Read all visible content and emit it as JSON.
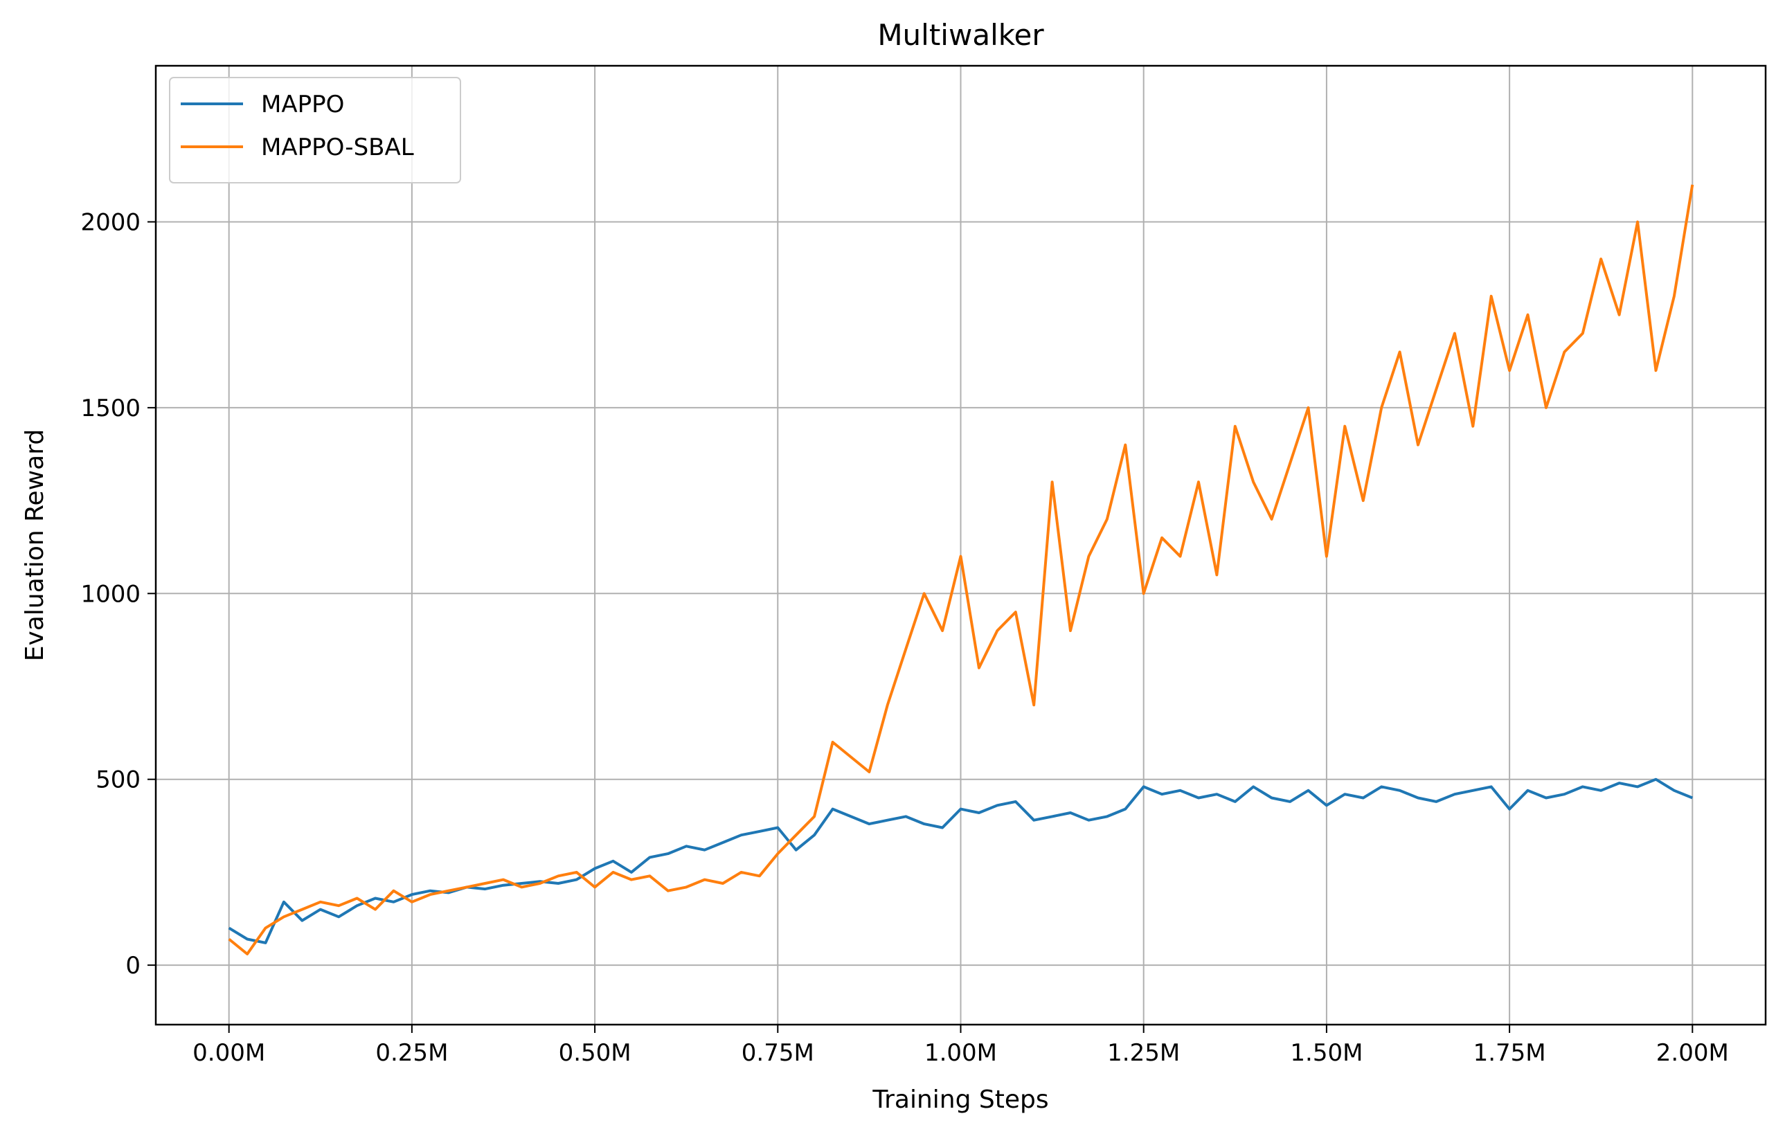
{
  "chart_data": {
    "type": "line",
    "title": "Multiwalker",
    "xlabel": "Training Steps",
    "ylabel": "Evaluation Reward",
    "xlim": [
      -0.1,
      2.1
    ],
    "ylim": [
      -160,
      2420
    ],
    "xticks": [
      0,
      0.25,
      0.5,
      0.75,
      1.0,
      1.25,
      1.5,
      1.75,
      2.0
    ],
    "xtick_labels": [
      "0.00M",
      "0.25M",
      "0.50M",
      "0.75M",
      "1.00M",
      "1.25M",
      "1.50M",
      "1.75M",
      "2.00M"
    ],
    "yticks": [
      0,
      500,
      1000,
      1500,
      2000
    ],
    "ytick_labels": [
      "0",
      "500",
      "1000",
      "1500",
      "2000"
    ],
    "grid": true,
    "legend_position": "top-left",
    "series": [
      {
        "name": "MAPPO",
        "color": "#1f77b4",
        "x": [
          0.0,
          0.025,
          0.05,
          0.075,
          0.1,
          0.125,
          0.15,
          0.175,
          0.2,
          0.225,
          0.25,
          0.275,
          0.3,
          0.325,
          0.35,
          0.375,
          0.4,
          0.425,
          0.45,
          0.475,
          0.5,
          0.525,
          0.55,
          0.575,
          0.6,
          0.625,
          0.65,
          0.675,
          0.7,
          0.725,
          0.75,
          0.775,
          0.8,
          0.825,
          0.85,
          0.875,
          0.9,
          0.925,
          0.95,
          0.975,
          1.0,
          1.025,
          1.05,
          1.075,
          1.1,
          1.125,
          1.15,
          1.175,
          1.2,
          1.225,
          1.25,
          1.275,
          1.3,
          1.325,
          1.35,
          1.375,
          1.4,
          1.425,
          1.45,
          1.475,
          1.5,
          1.525,
          1.55,
          1.575,
          1.6,
          1.625,
          1.65,
          1.675,
          1.7,
          1.725,
          1.75,
          1.775,
          1.8,
          1.825,
          1.85,
          1.875,
          1.9,
          1.925,
          1.95,
          1.975,
          2.0
        ],
        "y": [
          100,
          70,
          60,
          170,
          120,
          150,
          130,
          160,
          180,
          170,
          190,
          200,
          195,
          210,
          205,
          215,
          220,
          225,
          220,
          230,
          260,
          280,
          250,
          290,
          300,
          320,
          310,
          330,
          350,
          360,
          370,
          310,
          350,
          420,
          400,
          380,
          390,
          400,
          380,
          370,
          420,
          410,
          430,
          440,
          390,
          400,
          410,
          390,
          400,
          420,
          480,
          460,
          470,
          450,
          460,
          440,
          480,
          450,
          440,
          470,
          430,
          460,
          450,
          480,
          470,
          450,
          440,
          460,
          470,
          480,
          420,
          470,
          450,
          460,
          480,
          470,
          490,
          480,
          500,
          470,
          450
        ]
      },
      {
        "name": "MAPPO-SBAL",
        "color": "#ff7f0e",
        "x": [
          0.0,
          0.025,
          0.05,
          0.075,
          0.1,
          0.125,
          0.15,
          0.175,
          0.2,
          0.225,
          0.25,
          0.275,
          0.3,
          0.325,
          0.35,
          0.375,
          0.4,
          0.425,
          0.45,
          0.475,
          0.5,
          0.525,
          0.55,
          0.575,
          0.6,
          0.625,
          0.65,
          0.675,
          0.7,
          0.725,
          0.75,
          0.775,
          0.8,
          0.825,
          0.85,
          0.875,
          0.9,
          0.925,
          0.95,
          0.975,
          1.0,
          1.025,
          1.05,
          1.075,
          1.1,
          1.125,
          1.15,
          1.175,
          1.2,
          1.225,
          1.25,
          1.275,
          1.3,
          1.325,
          1.35,
          1.375,
          1.4,
          1.425,
          1.45,
          1.475,
          1.5,
          1.525,
          1.55,
          1.575,
          1.6,
          1.625,
          1.65,
          1.675,
          1.7,
          1.725,
          1.75,
          1.775,
          1.8,
          1.825,
          1.85,
          1.875,
          1.9,
          1.925,
          1.95,
          1.975,
          2.0
        ],
        "y": [
          70,
          30,
          100,
          130,
          150,
          170,
          160,
          180,
          150,
          200,
          170,
          190,
          200,
          210,
          220,
          230,
          210,
          220,
          240,
          250,
          210,
          250,
          230,
          240,
          200,
          210,
          230,
          220,
          250,
          240,
          300,
          350,
          400,
          600,
          560,
          520,
          700,
          850,
          1000,
          900,
          1100,
          800,
          900,
          950,
          700,
          1300,
          900,
          1100,
          1200,
          1400,
          1000,
          1150,
          1100,
          1300,
          1050,
          1450,
          1300,
          1200,
          1350,
          1500,
          1100,
          1450,
          1250,
          1500,
          1650,
          1400,
          1550,
          1700,
          1450,
          1800,
          1600,
          1750,
          1500,
          1650,
          1700,
          1900,
          1750,
          2000,
          1600,
          1800,
          2100
        ]
      }
    ]
  }
}
